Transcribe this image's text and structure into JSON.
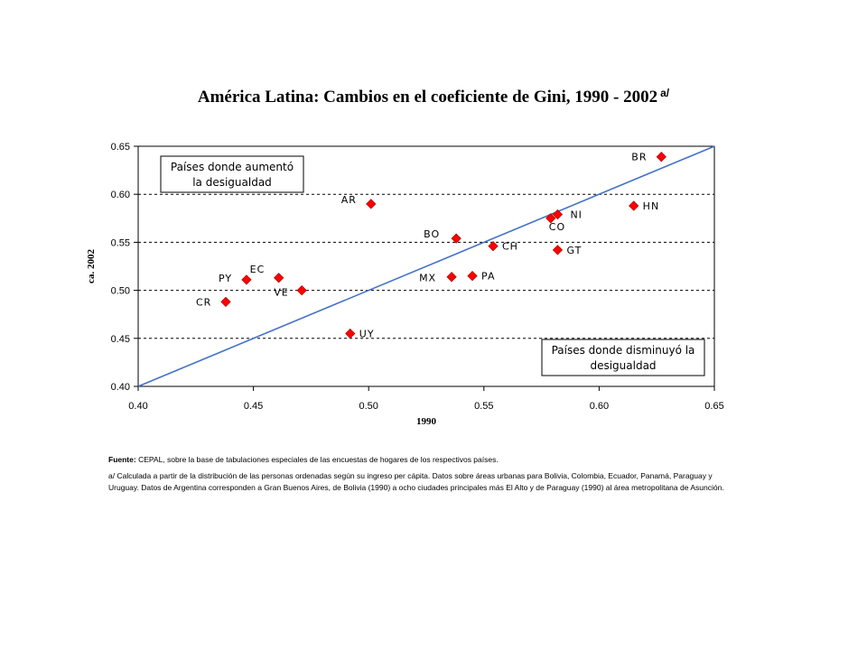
{
  "title": "América Latina: Cambios en el coeficiente de Gini, 1990 - 2002",
  "title_sup": "a/",
  "chart_data": {
    "type": "scatter",
    "xlabel": "1990",
    "ylabel": "ca. 2002",
    "xlim": [
      0.4,
      0.65
    ],
    "ylim": [
      0.4,
      0.65
    ],
    "xticks": [
      "0.40",
      "0.45",
      "0.50",
      "0.55",
      "0.60",
      "0.65"
    ],
    "yticks": [
      "0.40",
      "0.45",
      "0.50",
      "0.55",
      "0.60",
      "0.65"
    ],
    "grid": "horizontal dashed",
    "reference_line": "y = x",
    "points": [
      {
        "label": "BR",
        "x": 0.627,
        "y": 0.639
      },
      {
        "label": "HN",
        "x": 0.615,
        "y": 0.588
      },
      {
        "label": "NI",
        "x": 0.582,
        "y": 0.579
      },
      {
        "label": "CO",
        "x": 0.579,
        "y": 0.575
      },
      {
        "label": "GT",
        "x": 0.582,
        "y": 0.542
      },
      {
        "label": "AR",
        "x": 0.501,
        "y": 0.59
      },
      {
        "label": "BO",
        "x": 0.538,
        "y": 0.554
      },
      {
        "label": "CH",
        "x": 0.554,
        "y": 0.546
      },
      {
        "label": "MX",
        "x": 0.536,
        "y": 0.514
      },
      {
        "label": "PA",
        "x": 0.545,
        "y": 0.515
      },
      {
        "label": "PY",
        "x": 0.447,
        "y": 0.511
      },
      {
        "label": "EC",
        "x": 0.461,
        "y": 0.513
      },
      {
        "label": "VE",
        "x": 0.471,
        "y": 0.5
      },
      {
        "label": "CR",
        "x": 0.438,
        "y": 0.488
      },
      {
        "label": "UY",
        "x": 0.492,
        "y": 0.455
      }
    ],
    "annotations": [
      {
        "lines": [
          "Países donde aumentó",
          "la desigualdad"
        ]
      },
      {
        "lines": [
          "Países donde disminuyó la",
          "desigualdad"
        ]
      }
    ],
    "colors": {
      "marker": "#ff0000",
      "marker_stroke": "#990000",
      "line": "#4472c4",
      "grid": "#000000"
    }
  },
  "footer": {
    "source_label": "Fuente:",
    "source_text": " CEPAL, sobre la base de tabulaciones especiales de las encuestas de hogares de los respectivos países.",
    "note": "a/ Calculada a partir de la distribución de las personas ordenadas según su ingreso per cápita. Datos sobre áreas urbanas para Bolivia, Colombia, Ecuador, Panamá, Paraguay y Uruguay. Datos de Argentina corresponden a Gran Buenos Aires, de Bolivia (1990) a ocho ciudades principales más El Alto y de Paraguay (1990) al área metropolitana de Asunción."
  }
}
